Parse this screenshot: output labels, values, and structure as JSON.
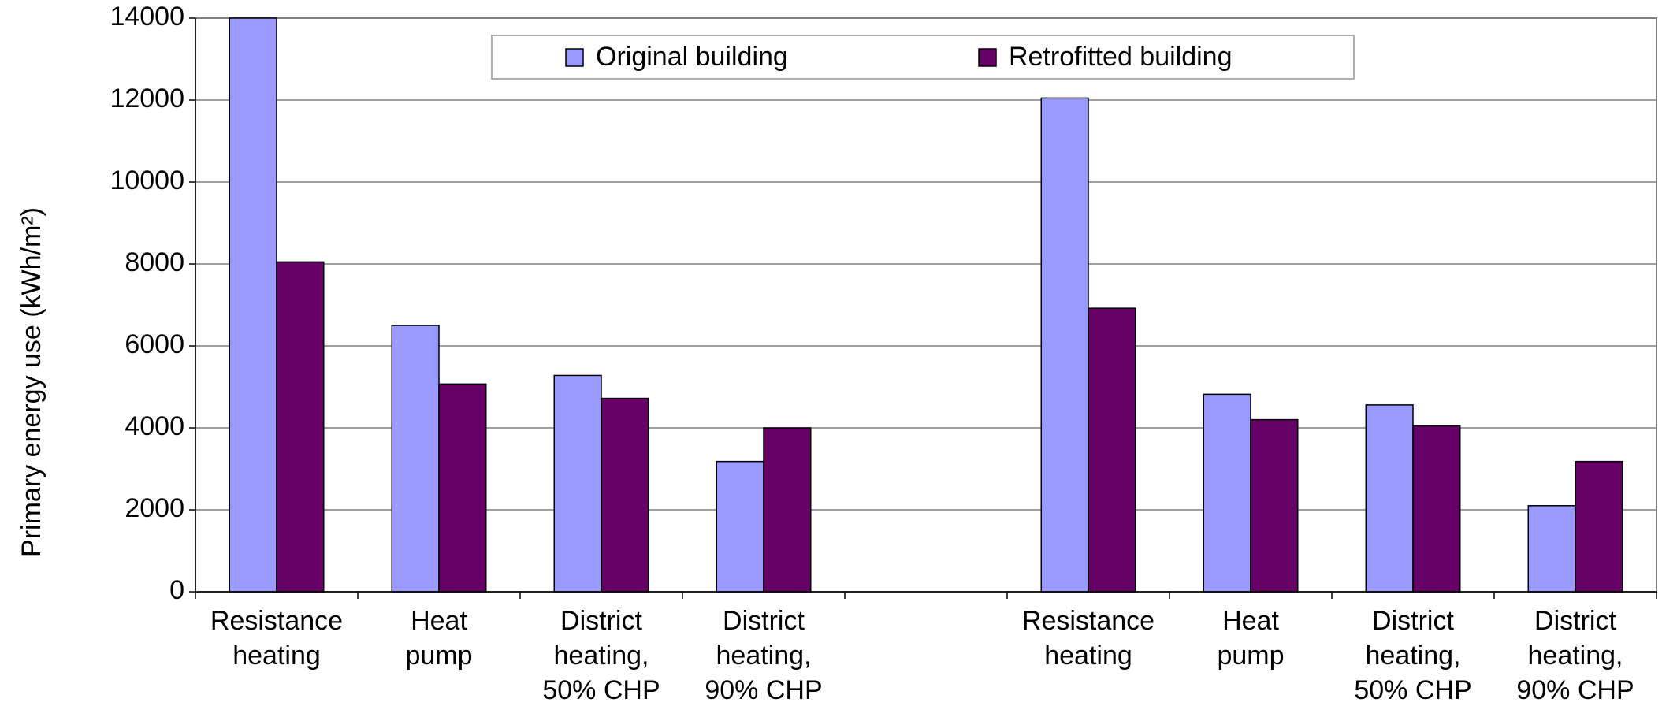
{
  "chart_data": {
    "type": "bar",
    "y_label": "Primary energy use (kWh/m²)",
    "categories": [
      "Resistance\nheating",
      "Heat\npump",
      "District\nheating,\n50% CHP",
      "District\nheating,\n90% CHP",
      null,
      "Resistance\nheating",
      "Heat\npump",
      "District\nheating,\n50% CHP",
      "District\nheating,\n90% CHP"
    ],
    "series": [
      {
        "name": "Original building",
        "color": "#9999ff",
        "values": [
          14000,
          6500,
          5280,
          3180,
          null,
          12050,
          4820,
          4560,
          2100
        ]
      },
      {
        "name": "Retrofitted building",
        "color": "#660066",
        "values": [
          8050,
          5070,
          4720,
          4000,
          null,
          6920,
          4200,
          4050,
          3180
        ]
      }
    ],
    "ylim": [
      0,
      14000
    ],
    "yticks": [
      0,
      2000,
      4000,
      6000,
      8000,
      10000,
      12000,
      14000
    ],
    "grid": true,
    "legend": "top"
  }
}
